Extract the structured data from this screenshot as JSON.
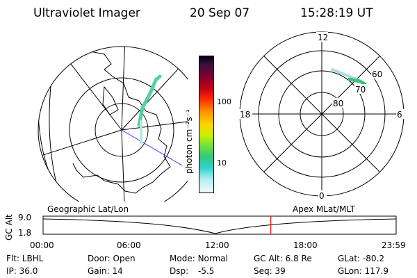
{
  "header": {
    "instrument": "Ultraviolet Imager",
    "date": "20 Sep 07",
    "time": "15:28:19 UT"
  },
  "polar_plot": {
    "mlt_labels": [
      "12",
      "18",
      "6",
      "0"
    ],
    "lat_labels": [
      "60",
      "70",
      "80"
    ]
  },
  "colorbar": {
    "unit_label": "photon cm⁻²s⁻¹",
    "ticks": [
      "100",
      "10"
    ]
  },
  "timeline": {
    "left_label": "Geographic Lat/Lon",
    "right_label": "Apex MLat/MLT",
    "y_axis_label": "GC Alt",
    "y_ticks": [
      "9.0",
      "1.8"
    ],
    "x_ticks": [
      "00:00",
      "06:00",
      "12:00",
      "18:00",
      "23:59"
    ],
    "current_time_fraction": 0.645,
    "marker_color": "#ff0000"
  },
  "info": {
    "row1": [
      {
        "label": "Flt:",
        "value": "LBHL"
      },
      {
        "label": "Door:",
        "value": "Open"
      },
      {
        "label": "Mode:",
        "value": "Normal"
      },
      {
        "label": "GC Alt:",
        "value": "6.8 Re"
      },
      {
        "label": "GLat:",
        "value": "-80.2"
      }
    ],
    "row2": [
      {
        "label": "IP:",
        "value": "36.0"
      },
      {
        "label": "Gain:",
        "value": "14"
      },
      {
        "label": "Dsp:",
        "value": "-5.5"
      },
      {
        "label": "Seq:",
        "value": "39"
      },
      {
        "label": "GLon:",
        "value": "117.9"
      }
    ]
  }
}
